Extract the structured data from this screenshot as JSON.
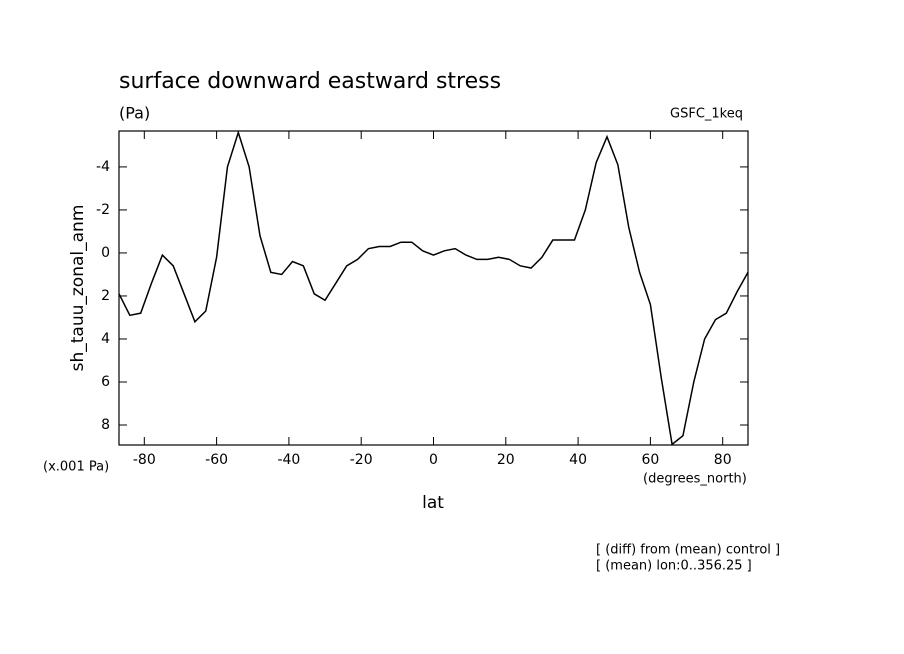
{
  "chart_data": {
    "type": "line",
    "title": "surface downward eastward stress",
    "subtitle": "(Pa)",
    "dataset_label": "GSFC_1keq",
    "ylabel": "sh_tauu_zonal_anm",
    "y_units": "(x.001 Pa)",
    "x_units": "(degrees_north)",
    "xlabel": "lat",
    "notes": [
      "[ (diff) from (mean) control ]",
      "[ (mean) lon:0..356.25 ]"
    ],
    "color": "#000000",
    "x": [
      -87,
      -84,
      -81,
      -78,
      -75,
      -72,
      -69,
      -66,
      -63,
      -60,
      -57,
      -54,
      -51,
      -48,
      -45,
      -42,
      -39,
      -36,
      -33,
      -30,
      -27,
      -24,
      -21,
      -18,
      -15,
      -12,
      -9,
      -6,
      -3,
      0,
      3,
      6,
      9,
      12,
      15,
      18,
      21,
      24,
      27,
      30,
      33,
      36,
      39,
      42,
      45,
      48,
      51,
      54,
      57,
      60,
      63,
      66,
      69,
      72,
      75,
      78,
      81,
      84,
      87
    ],
    "values": [
      1.9,
      2.9,
      2.8,
      1.4,
      0.1,
      0.6,
      1.9,
      3.2,
      2.7,
      0.2,
      -4,
      -5.6,
      -4,
      -0.8,
      0.9,
      1.0,
      0.4,
      0.6,
      1.9,
      2.2,
      1.4,
      0.6,
      0.3,
      -0.2,
      -0.3,
      -0.3,
      -0.5,
      -0.5,
      -0.1,
      0.1,
      -0.1,
      -0.2,
      0.1,
      0.3,
      0.3,
      0.2,
      0.3,
      0.6,
      0.7,
      0.2,
      -0.6,
      -0.6,
      -0.6,
      -2.0,
      -4.2,
      -5.4,
      -4.1,
      -1.2,
      0.9,
      2.4,
      5.8,
      8.9,
      8.5,
      6.0,
      4.0,
      3.1,
      2.8,
      1.8,
      0.9
    ],
    "xlim": [
      -87,
      87
    ],
    "xticks": [
      -80,
      -60,
      -40,
      -20,
      0,
      20,
      40,
      60,
      80
    ],
    "ylim": [
      8.93,
      -5.67
    ],
    "yticks": [
      -4,
      -2,
      0,
      2,
      4,
      6,
      8
    ]
  }
}
